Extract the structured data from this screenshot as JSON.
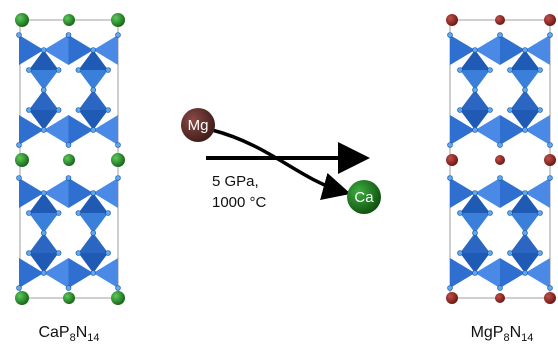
{
  "reaction": {
    "ion_in": "Mg",
    "ion_out": "Ca",
    "conditions": [
      "5 GPa,",
      "1000 °C"
    ]
  },
  "formulas": [
    {
      "parts": [
        {
          "text": "CaP"
        },
        {
          "text": "8",
          "sub": true
        },
        {
          "text": "N"
        },
        {
          "text": "14",
          "sub": true
        }
      ]
    },
    {
      "parts": [
        {
          "text": "MgP"
        },
        {
          "text": "8",
          "sub": true
        },
        {
          "text": "N"
        },
        {
          "text": "14",
          "sub": true
        }
      ]
    }
  ]
}
